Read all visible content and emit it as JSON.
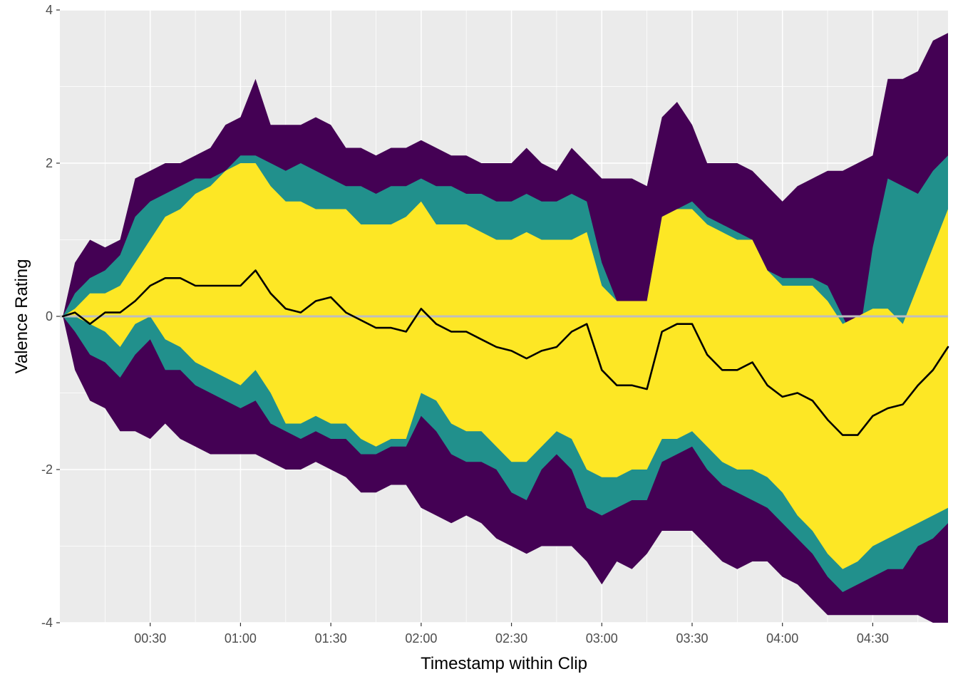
{
  "chart_data": {
    "type": "area",
    "xlabel": "Timestamp within Clip",
    "ylabel": "Valence Rating",
    "x_unit": "mm:ss",
    "xlim": [
      "00:00",
      "04:55"
    ],
    "ylim": [
      -4,
      4
    ],
    "x_ticks": [
      "00:30",
      "01:00",
      "01:30",
      "02:00",
      "02:30",
      "03:00",
      "03:30",
      "04:00",
      "04:30"
    ],
    "y_ticks": [
      "-4",
      "-2",
      "0",
      "2",
      "4"
    ],
    "y_tick_values": [
      -4,
      -2,
      0,
      2,
      4
    ],
    "grid": true,
    "reference_line": {
      "y": 0,
      "color": "#bebebe"
    },
    "colors": {
      "panel_background": "#ebebeb",
      "outer_band": "#440154",
      "middle_band": "#21908c",
      "inner_band": "#fde725",
      "mean_line": "#000000"
    },
    "x": [
      "00:01",
      "00:05",
      "00:10",
      "00:15",
      "00:20",
      "00:25",
      "00:30",
      "00:35",
      "00:40",
      "00:45",
      "00:50",
      "00:55",
      "01:00",
      "01:05",
      "01:10",
      "01:15",
      "01:20",
      "01:25",
      "01:30",
      "01:35",
      "01:40",
      "01:45",
      "01:50",
      "01:55",
      "02:00",
      "02:05",
      "02:10",
      "02:15",
      "02:20",
      "02:25",
      "02:30",
      "02:35",
      "02:40",
      "02:45",
      "02:50",
      "02:55",
      "03:00",
      "03:05",
      "03:10",
      "03:15",
      "03:20",
      "03:25",
      "03:30",
      "03:35",
      "03:40",
      "03:45",
      "03:50",
      "03:55",
      "04:00",
      "04:05",
      "04:10",
      "04:15",
      "04:20",
      "04:25",
      "04:30",
      "04:35",
      "04:40",
      "04:45",
      "04:50",
      "04:55"
    ],
    "series": [
      {
        "band": "outer",
        "upper": [
          0.0,
          0.7,
          1.0,
          0.9,
          1.0,
          1.8,
          1.9,
          2.0,
          2.0,
          2.1,
          2.2,
          2.5,
          2.6,
          3.1,
          2.5,
          2.5,
          2.5,
          2.6,
          2.5,
          2.2,
          2.2,
          2.1,
          2.2,
          2.2,
          2.3,
          2.2,
          2.1,
          2.1,
          2.0,
          2.0,
          2.0,
          2.2,
          2.0,
          1.9,
          2.2,
          2.0,
          1.8,
          1.8,
          1.8,
          1.7,
          2.6,
          2.8,
          2.5,
          2.0,
          2.0,
          2.0,
          1.9,
          1.7,
          1.5,
          1.7,
          1.8,
          1.9,
          1.9,
          2.0,
          2.1,
          3.1,
          3.1,
          3.2,
          3.6,
          3.7
        ],
        "lower": [
          0.0,
          -0.7,
          -1.1,
          -1.2,
          -1.5,
          -1.5,
          -1.6,
          -1.4,
          -1.6,
          -1.7,
          -1.8,
          -1.8,
          -1.8,
          -1.8,
          -1.9,
          -2.0,
          -2.0,
          -1.9,
          -2.0,
          -2.1,
          -2.3,
          -2.3,
          -2.2,
          -2.2,
          -2.5,
          -2.6,
          -2.7,
          -2.6,
          -2.7,
          -2.9,
          -3.0,
          -3.1,
          -3.0,
          -3.0,
          -3.0,
          -3.2,
          -3.5,
          -3.2,
          -3.3,
          -3.1,
          -2.8,
          -2.8,
          -2.8,
          -3.0,
          -3.2,
          -3.3,
          -3.2,
          -3.2,
          -3.4,
          -3.5,
          -3.7,
          -3.9,
          -3.9,
          -3.9,
          -3.9,
          -3.9,
          -3.9,
          -3.9,
          -4.0,
          -4.0
        ]
      },
      {
        "band": "middle",
        "upper": [
          0.0,
          0.3,
          0.5,
          0.6,
          0.8,
          1.3,
          1.5,
          1.6,
          1.7,
          1.8,
          1.8,
          1.9,
          2.1,
          2.1,
          2.0,
          1.9,
          2.0,
          1.9,
          1.8,
          1.7,
          1.7,
          1.6,
          1.7,
          1.7,
          1.8,
          1.7,
          1.7,
          1.6,
          1.6,
          1.5,
          1.5,
          1.6,
          1.5,
          1.5,
          1.6,
          1.5,
          0.7,
          0.2,
          0.2,
          0.2,
          1.3,
          1.4,
          1.5,
          1.3,
          1.2,
          1.1,
          1.0,
          0.6,
          0.5,
          0.5,
          0.5,
          0.4,
          0.0,
          -0.4,
          0.9,
          1.8,
          1.7,
          1.6,
          1.9,
          2.1
        ],
        "lower": [
          0.0,
          -0.2,
          -0.5,
          -0.6,
          -0.8,
          -0.5,
          -0.3,
          -0.7,
          -0.7,
          -0.9,
          -1.0,
          -1.1,
          -1.2,
          -1.1,
          -1.4,
          -1.5,
          -1.6,
          -1.5,
          -1.6,
          -1.6,
          -1.8,
          -1.8,
          -1.7,
          -1.7,
          -1.3,
          -1.5,
          -1.8,
          -1.9,
          -1.9,
          -2.0,
          -2.3,
          -2.4,
          -2.0,
          -1.8,
          -2.0,
          -2.5,
          -2.6,
          -2.5,
          -2.4,
          -2.4,
          -1.9,
          -1.8,
          -1.7,
          -2.0,
          -2.2,
          -2.3,
          -2.4,
          -2.5,
          -2.7,
          -2.9,
          -3.1,
          -3.4,
          -3.6,
          -3.5,
          -3.4,
          -3.3,
          -3.3,
          -3.0,
          -2.9,
          -2.7
        ]
      },
      {
        "band": "inner",
        "upper": [
          0.0,
          0.1,
          0.3,
          0.3,
          0.4,
          0.7,
          1.0,
          1.3,
          1.4,
          1.6,
          1.7,
          1.9,
          2.0,
          2.0,
          1.7,
          1.5,
          1.5,
          1.4,
          1.4,
          1.4,
          1.2,
          1.2,
          1.2,
          1.3,
          1.5,
          1.2,
          1.2,
          1.2,
          1.1,
          1.0,
          1.0,
          1.1,
          1.0,
          1.0,
          1.0,
          1.1,
          0.4,
          0.2,
          0.2,
          0.2,
          1.3,
          1.4,
          1.4,
          1.2,
          1.1,
          1.0,
          1.0,
          0.6,
          0.4,
          0.4,
          0.4,
          0.2,
          -0.1,
          0.0,
          0.1,
          0.1,
          -0.1,
          0.4,
          0.9,
          1.4
        ],
        "lower": [
          0.0,
          0.0,
          -0.1,
          -0.2,
          -0.4,
          -0.1,
          0.0,
          -0.3,
          -0.4,
          -0.6,
          -0.7,
          -0.8,
          -0.9,
          -0.7,
          -1.0,
          -1.4,
          -1.4,
          -1.3,
          -1.4,
          -1.4,
          -1.6,
          -1.7,
          -1.6,
          -1.6,
          -1.0,
          -1.1,
          -1.4,
          -1.5,
          -1.5,
          -1.7,
          -1.9,
          -1.9,
          -1.7,
          -1.5,
          -1.6,
          -2.0,
          -2.1,
          -2.1,
          -2.0,
          -2.0,
          -1.6,
          -1.6,
          -1.5,
          -1.7,
          -1.9,
          -2.0,
          -2.0,
          -2.1,
          -2.3,
          -2.6,
          -2.8,
          -3.1,
          -3.3,
          -3.2,
          -3.0,
          -2.9,
          -2.8,
          -2.7,
          -2.6,
          -2.5
        ]
      },
      {
        "band": "mean",
        "values": [
          0.0,
          0.05,
          -0.1,
          0.05,
          0.05,
          0.2,
          0.4,
          0.5,
          0.5,
          0.4,
          0.4,
          0.4,
          0.4,
          0.6,
          0.3,
          0.1,
          0.05,
          0.2,
          0.25,
          0.05,
          -0.05,
          -0.15,
          -0.15,
          -0.2,
          0.1,
          -0.1,
          -0.2,
          -0.2,
          -0.3,
          -0.4,
          -0.45,
          -0.55,
          -0.45,
          -0.4,
          -0.2,
          -0.1,
          -0.7,
          -0.9,
          -0.9,
          -0.95,
          -0.2,
          -0.1,
          -0.1,
          -0.5,
          -0.7,
          -0.7,
          -0.6,
          -0.9,
          -1.05,
          -1.0,
          -1.1,
          -1.35,
          -1.55,
          -1.55,
          -1.3,
          -1.2,
          -1.15,
          -0.9,
          -0.7,
          -0.4
        ]
      }
    ]
  }
}
